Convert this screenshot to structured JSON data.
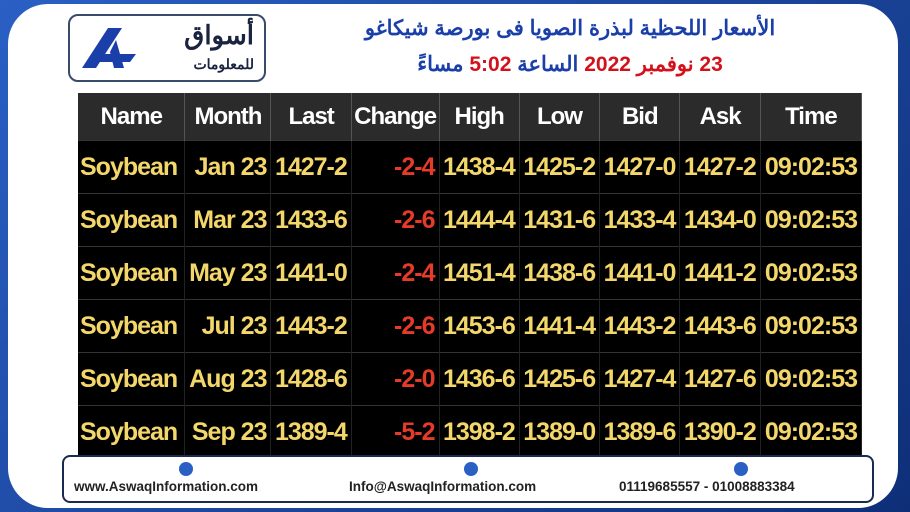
{
  "header": {
    "logo": {
      "name": "أسواق",
      "tagline": "للمعلومات"
    },
    "title": "الأسعار اللحظية لبذرة الصويا فى بورصة شيكاغو",
    "subtitle": [
      {
        "text": "23 نوفمبر 2022",
        "color": "#d4101a"
      },
      {
        "text": "الساعة",
        "color": "#1a3fa8"
      },
      {
        "text": "5:02",
        "color": "#d4101a"
      },
      {
        "text": "مساءً",
        "color": "#1a3fa8"
      }
    ]
  },
  "table": {
    "columns": [
      "Name",
      "Month",
      "Last",
      "Change",
      "High",
      "Low",
      "Bid",
      "Ask",
      "Time"
    ],
    "rows": [
      [
        "Soybean",
        "Jan 23",
        "1427-2",
        "-2-4",
        "1438-4",
        "1425-2",
        "1427-0",
        "1427-2",
        "09:02:53"
      ],
      [
        "Soybean",
        "Mar 23",
        "1433-6",
        "-2-6",
        "1444-4",
        "1431-6",
        "1433-4",
        "1434-0",
        "09:02:53"
      ],
      [
        "Soybean",
        "May 23",
        "1441-0",
        "-2-4",
        "1451-4",
        "1438-6",
        "1441-0",
        "1441-2",
        "09:02:53"
      ],
      [
        "Soybean",
        "Jul 23",
        "1443-2",
        "-2-6",
        "1453-6",
        "1441-4",
        "1443-2",
        "1443-6",
        "09:02:53"
      ],
      [
        "Soybean",
        "Aug 23",
        "1428-6",
        "-2-0",
        "1436-6",
        "1425-6",
        "1427-4",
        "1427-6",
        "09:02:53"
      ],
      [
        "Soybean",
        "Sep 23",
        "1389-4",
        "-5-2",
        "1398-2",
        "1389-0",
        "1389-6",
        "1390-2",
        "09:02:53"
      ]
    ]
  },
  "footer": {
    "website": "www.AswaqInformation.com",
    "email": "Info@AswaqInformation.com",
    "phone": "01119685557 - 01008883384"
  }
}
